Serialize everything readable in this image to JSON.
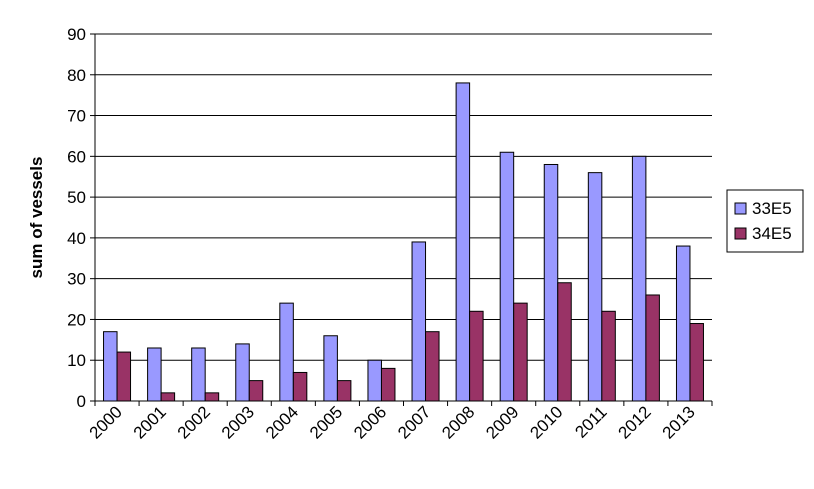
{
  "chart_data": {
    "type": "bar",
    "title": "",
    "xlabel": "",
    "ylabel": "sum of vessels",
    "ylim": [
      0,
      90
    ],
    "yticks": [
      0,
      10,
      20,
      30,
      40,
      50,
      60,
      70,
      80,
      90
    ],
    "grid": "horizontal",
    "legend_position": "right",
    "categories": [
      "2000",
      "2001",
      "2002",
      "2003",
      "2004",
      "2005",
      "2006",
      "2007",
      "2008",
      "2009",
      "2010",
      "2011",
      "2012",
      "2013"
    ],
    "series": [
      {
        "name": "33E5",
        "color": "#9999ff",
        "values": [
          17,
          13,
          13,
          14,
          24,
          16,
          10,
          39,
          78,
          61,
          58,
          56,
          60,
          38
        ]
      },
      {
        "name": "34E5",
        "color": "#993366",
        "values": [
          12,
          2,
          2,
          5,
          7,
          5,
          8,
          17,
          22,
          24,
          29,
          22,
          26,
          19
        ]
      }
    ]
  }
}
